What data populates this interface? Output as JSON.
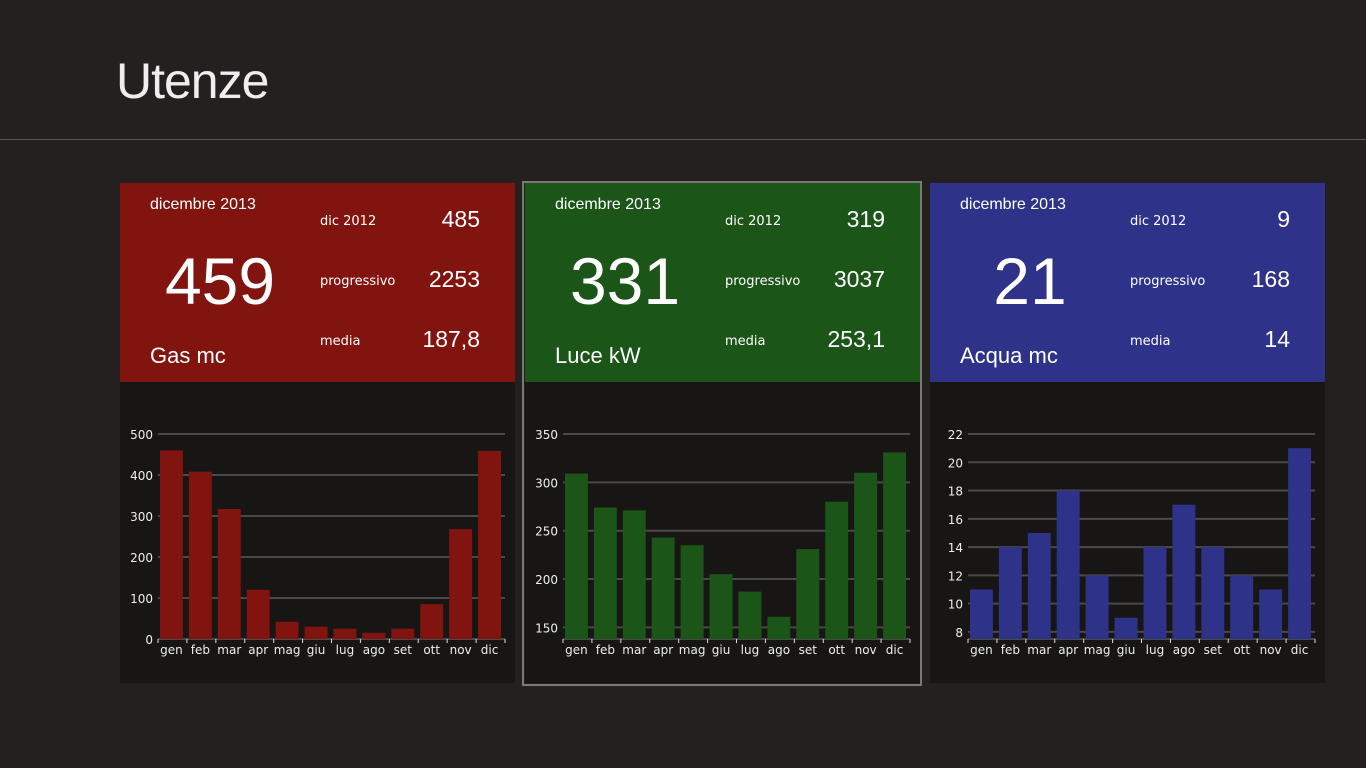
{
  "page": {
    "title": "Utenze"
  },
  "panels": [
    {
      "id": "gas",
      "color": "#821410",
      "month": "dicembre 2013",
      "value": "459",
      "name": "Gas mc",
      "stats": [
        {
          "label": "dic 2012",
          "value": "485"
        },
        {
          "label": "progressivo",
          "value": "2253"
        },
        {
          "label": "media",
          "value": "187,8"
        }
      ]
    },
    {
      "id": "luce",
      "color": "#1b5518",
      "month": "dicembre 2013",
      "value": "331",
      "name": "Luce kW",
      "stats": [
        {
          "label": "dic 2012",
          "value": "319"
        },
        {
          "label": "progressivo",
          "value": "3037"
        },
        {
          "label": "media",
          "value": "253,1"
        }
      ]
    },
    {
      "id": "acqua",
      "color": "#2e3289",
      "month": "dicembre 2013",
      "value": "21",
      "name": "Acqua mc",
      "stats": [
        {
          "label": "dic 2012",
          "value": "9"
        },
        {
          "label": "progressivo",
          "value": "168"
        },
        {
          "label": "media",
          "value": "14"
        }
      ]
    }
  ],
  "chart_data": [
    {
      "type": "bar",
      "title": "Gas mc",
      "categories": [
        "gen",
        "feb",
        "mar",
        "apr",
        "mag",
        "giu",
        "lug",
        "ago",
        "set",
        "ott",
        "nov",
        "dic"
      ],
      "values": [
        460,
        408,
        317,
        120,
        42,
        30,
        25,
        15,
        25,
        85,
        268,
        459
      ],
      "ylim": [
        0,
        500
      ],
      "yticks": [
        0,
        100,
        200,
        300,
        400,
        500
      ],
      "grid": true
    },
    {
      "type": "bar",
      "title": "Luce kW",
      "categories": [
        "gen",
        "feb",
        "mar",
        "apr",
        "mag",
        "giu",
        "lug",
        "ago",
        "set",
        "ott",
        "nov",
        "dic"
      ],
      "values": [
        309,
        274,
        271,
        243,
        235,
        205,
        187,
        161,
        231,
        280,
        310,
        331
      ],
      "ylim": [
        138,
        350
      ],
      "yticks": [
        150,
        200,
        250,
        300,
        350
      ],
      "grid": true
    },
    {
      "type": "bar",
      "title": "Acqua mc",
      "categories": [
        "gen",
        "feb",
        "mar",
        "apr",
        "mag",
        "giu",
        "lug",
        "ago",
        "set",
        "ott",
        "nov",
        "dic"
      ],
      "values": [
        11,
        14,
        15,
        18,
        12,
        9,
        14,
        17,
        14,
        12,
        11,
        21
      ],
      "ylim": [
        7.5,
        22
      ],
      "yticks": [
        8,
        10,
        12,
        14,
        16,
        18,
        20,
        22
      ],
      "grid": true
    }
  ]
}
